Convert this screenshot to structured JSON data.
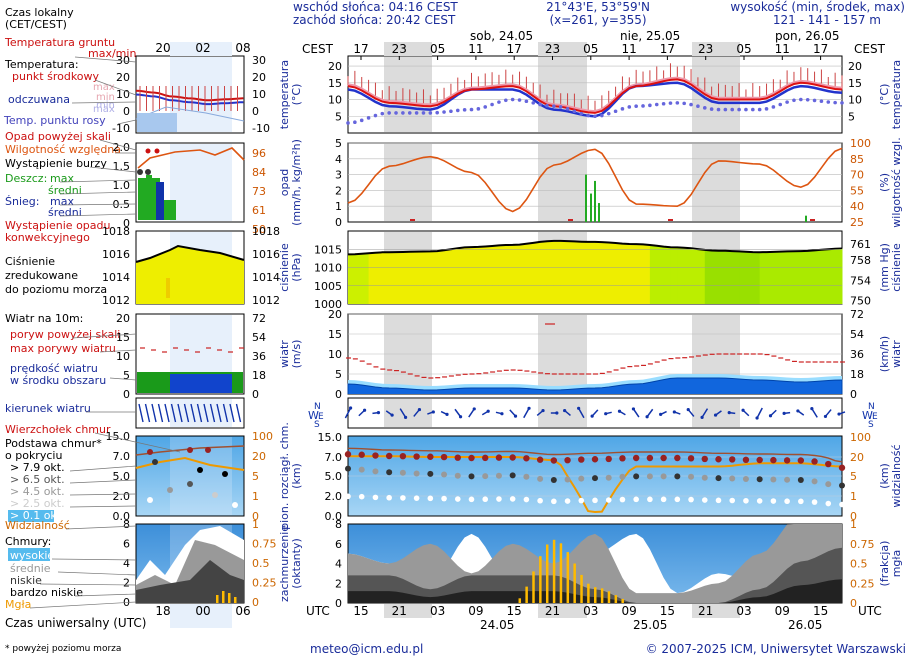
{
  "header": {
    "sunrise": "wschód słońca: 04:16 CEST",
    "sunset": "zachód słońca: 20:42 CEST",
    "coords": "21°43'E, 53°59'N",
    "grid": "(x=261, y=355)",
    "altitude_label": "wysokość (min, środek, max)",
    "altitude_values": "121 - 141 - 157 m"
  },
  "time_axis": {
    "tz_top": "CEST",
    "tz_bottom": "UTC",
    "hours_top": [
      "17",
      "23",
      "05",
      "11",
      "17",
      "23",
      "05",
      "11",
      "17",
      "23",
      "05",
      "11",
      "17"
    ],
    "hours_bottom": [
      "15",
      "21",
      "03",
      "09",
      "15",
      "21",
      "03",
      "09",
      "15",
      "21",
      "03",
      "09",
      "15"
    ],
    "days_top": [
      "sob, 24.05",
      "nie, 25.05",
      "pon, 26.05"
    ],
    "days_bottom": [
      "24.05",
      "25.05",
      "26.05"
    ]
  },
  "legend": {
    "local_time": "Czas lokalny\n(CET/CEST)",
    "local_hours": [
      "20",
      "02",
      "08"
    ],
    "utc_label": "Czas uniwersalny (UTC)",
    "utc_hours": [
      "18",
      "00",
      "06"
    ],
    "temperature": {
      "ground": "Temperatura gruntu",
      "maxmin": "max/min",
      "label": "Temperatura:",
      "mid": "punkt środkowy",
      "max": "max",
      "min": "min",
      "feels": "odczuwana",
      "feels_max": "max",
      "feels_min": "min",
      "dew": "Temp. punktu rosy",
      "ticks": [
        "30",
        "20",
        "10",
        "0",
        "-10"
      ]
    },
    "precip": {
      "over": "Opad powyżej skali",
      "humidity": "Wilgotność względna",
      "storm": "Wystąpienie burzy",
      "rain": "Deszcz:",
      "rain_max": "max",
      "rain_mid": "średni",
      "snow": "Śnieg:",
      "snow_max": "max",
      "snow_mid": "średni",
      "conv": "Wystąpienie opadu\nkonwekcyjnego",
      "ticks_left": [
        "2.0",
        "1.5",
        "1.0",
        "0.5",
        "0"
      ],
      "ticks_right": [
        "96",
        "84",
        "73",
        "61",
        "50"
      ]
    },
    "pressure": {
      "text": "Ciśnienie\nzredukowane\ndo poziomu morza",
      "ticks_left": [
        "1018",
        "1016",
        "1014",
        "1012"
      ],
      "ticks_right": [
        "1018",
        "1016",
        "1014",
        "1012"
      ]
    },
    "wind": {
      "title": "Wiatr na 10m:",
      "gust_over": "poryw powyżej skali",
      "gust_max": "max porywy wiatru",
      "speed": "prędkość wiatru\nw środku obszaru",
      "direction": "kierunek wiatru",
      "ticks_left": [
        "20",
        "15",
        "10",
        "5",
        "0"
      ],
      "ticks_right": [
        "72",
        "54",
        "36",
        "18",
        "0"
      ]
    },
    "clouds": {
      "tops": "Wierzchołek chmur",
      "base": "Podstawa chmur*\no pokryciu",
      "okt79": "> 7.9 okt.",
      "okt65": "> 6.5 okt.",
      "okt45": "> 4.5 okt.",
      "okt25": "> 2.5 okt.",
      "okt01": "> 0.1 okt.",
      "visibility": "Widzialność",
      "ticks_left": [
        "15.0",
        "7.0",
        "5.0",
        "2.0",
        "0.0"
      ],
      "ticks_right": [
        "100",
        "20",
        "5",
        "1",
        "0"
      ]
    },
    "cover": {
      "title": "Chmury:",
      "high": "wysokie",
      "mid": "średnie",
      "low": "niskie",
      "vlow": "bardzo niskie",
      "fog": "Mgła",
      "ticks_left": [
        "8",
        "6",
        "4",
        "2",
        "0"
      ],
      "ticks_right": [
        "1",
        "0.75",
        "0.5",
        "0.25",
        "0"
      ]
    },
    "footnote": "* powyżej poziomu morza"
  },
  "axis_titles": {
    "temp_left": "temperatura\n(°C)",
    "temp_right": "(°C)\ntemperatura",
    "precip_left": "opad\n(mm/h, kg/m²h)",
    "precip_right": "(%)\nwilgotność wzgl.",
    "press_left": "ciśnienie\n(hPa)",
    "press_right": "(mm Hg)\nciśnienie",
    "wind_left": "wiatr\n(m/s)",
    "wind_right": "(km/h)\nwiatr",
    "cloud_left": "pion. rozciągł. chm.\n(km)",
    "cloud_right": "(km)\nwidzialność",
    "cover_left": "zachmurzenie\n(oktanty)",
    "cover_right": "(frakcja)\nmgła"
  },
  "footer": {
    "email": "meteo@icm.edu.pl",
    "copyright": "© 2007-2025 ICM, Uniwersytet Warszawski"
  },
  "chart_data": [
    {
      "type": "line",
      "title": "temperatura",
      "x_hours_from_start": [
        0,
        6,
        12,
        18,
        24,
        30,
        36,
        42,
        48,
        54,
        60,
        66,
        72
      ],
      "series": [
        {
          "name": "punkt środkowy",
          "values": [
            14,
            9,
            8,
            13,
            14,
            8,
            6,
            14,
            16,
            10,
            10,
            15,
            13
          ]
        },
        {
          "name": "odczuwana",
          "values": [
            13,
            8,
            7,
            13,
            13,
            7,
            5,
            14,
            15,
            9,
            9,
            14,
            12
          ]
        },
        {
          "name": "Temp. punktu rosy",
          "values": [
            3,
            6,
            6,
            7,
            10,
            8,
            5,
            8,
            9,
            7,
            7,
            10,
            9
          ]
        }
      ],
      "ylim": [
        0,
        23
      ],
      "ticks_left": [
        "20",
        "15",
        "10",
        "5"
      ],
      "ticks_right": [
        "20",
        "15",
        "10",
        "5"
      ]
    },
    {
      "type": "line",
      "title": "opad / wilgotność",
      "series": [
        {
          "name": "wilgotność względna",
          "values": [
            43,
            78,
            87,
            72,
            35,
            79,
            94,
            42,
            40,
            83,
            80,
            58,
            95
          ]
        },
        {
          "name": "opad max",
          "values": [
            0,
            0,
            0,
            0,
            0,
            2,
            0,
            0,
            0,
            0,
            0,
            0,
            0
          ]
        }
      ],
      "ylim": [
        0,
        5
      ],
      "ticks_left": [
        "5",
        "4",
        "3",
        "2",
        "1",
        "0"
      ],
      "ticks_right": [
        "100",
        "85",
        "70",
        "55",
        "40",
        "25"
      ]
    },
    {
      "type": "area",
      "title": "ciśnienie",
      "series": [
        {
          "name": "ciśnienie",
          "values": [
            1013.6,
            1014.2,
            1014.4,
            1015.6,
            1016.2,
            1017.3,
            1017.0,
            1016.4,
            1015.5,
            1014.6,
            1014.2,
            1014.5,
            1015.2
          ]
        }
      ],
      "ylim": [
        1000,
        1020
      ],
      "ticks_left": [
        "1015",
        "1010",
        "1005",
        "1000"
      ],
      "ticks_right": [
        "761",
        "758",
        "754",
        "750"
      ]
    },
    {
      "type": "line",
      "title": "wiatr",
      "series": [
        {
          "name": "max porywy",
          "values": [
            9,
            6,
            4,
            5,
            6,
            5,
            5,
            7,
            9,
            10,
            10,
            8,
            8
          ]
        },
        {
          "name": "prędkość",
          "values": [
            2.5,
            1.5,
            1.0,
            1.5,
            1.5,
            1.0,
            1.5,
            2.5,
            4.0,
            4.0,
            3.5,
            3.0,
            3.5
          ]
        }
      ],
      "ylim": [
        0,
        20
      ],
      "ticks_left": [
        "20",
        "15",
        "10",
        "5",
        "0"
      ],
      "ticks_right": [
        "72",
        "54",
        "36",
        "18",
        "0"
      ]
    },
    {
      "type": "line",
      "title": "chmury / widzialność",
      "series": [
        {
          "name": "wierzchołek chmur",
          "values": [
            10.5,
            9.8,
            9.5,
            9.0,
            9.2,
            8.0,
            8.5,
            9.0,
            9.0,
            8.5,
            8.2,
            8.0,
            6.5
          ]
        },
        {
          "name": "widzialność",
          "values": [
            22,
            22,
            21,
            21,
            21,
            20,
            0,
            18,
            18,
            18,
            19,
            19,
            18
          ]
        }
      ],
      "ylim": [
        0,
        15
      ],
      "ticks_left": [
        "15.0",
        "7.0",
        "5.0",
        "2.0",
        "0.0"
      ],
      "ticks_right": [
        "100",
        "20",
        "5",
        "1",
        "0"
      ]
    },
    {
      "type": "area",
      "title": "zachmurzenie",
      "series": [
        {
          "name": "wysokie",
          "values": [
            5,
            4,
            2,
            7,
            2,
            2,
            5,
            7,
            1,
            3,
            2,
            5,
            6
          ]
        },
        {
          "name": "średnie",
          "values": [
            3,
            2,
            5,
            1,
            4,
            2,
            6,
            1,
            1,
            2,
            4,
            6,
            5
          ]
        },
        {
          "name": "niskie",
          "values": [
            2,
            2,
            1,
            2,
            2,
            2,
            1,
            0,
            0,
            0,
            1,
            3,
            4
          ]
        },
        {
          "name": "mgła",
          "values": [
            0,
            0,
            0,
            0,
            0,
            0.4,
            0.1,
            0,
            0,
            0,
            0,
            0,
            0
          ]
        }
      ],
      "ylim": [
        0,
        8
      ],
      "ticks_left": [
        "8",
        "6",
        "4",
        "2",
        "0"
      ],
      "ticks_right": [
        "1",
        "0.75",
        "0.5",
        "0.25",
        "0"
      ]
    }
  ]
}
